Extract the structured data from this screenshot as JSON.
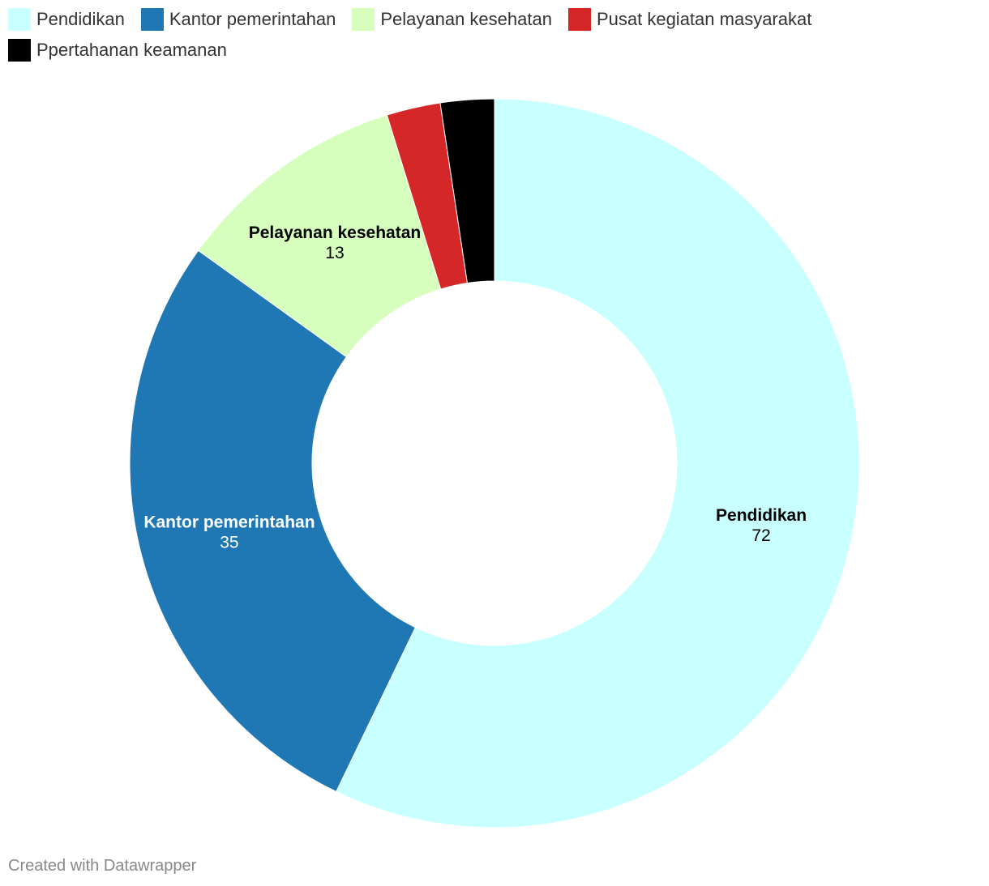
{
  "chart_data": {
    "type": "pie",
    "donut": true,
    "title": "",
    "legend_placement": "top-left",
    "slices": [
      {
        "label": "Pendidikan",
        "value": 72,
        "color": "#c8ffff",
        "label_color": "#000000",
        "show_label": true
      },
      {
        "label": "Kantor pemerintahan",
        "value": 35,
        "color": "#1f77b4",
        "label_color": "#ffffff",
        "show_label": true
      },
      {
        "label": "Pelayanan kesehatan",
        "value": 13,
        "color": "#d6ffbe",
        "label_color": "#000000",
        "show_label": true
      },
      {
        "label": "Pusat kegiatan masyarakat",
        "value": 3,
        "color": "#d62728",
        "label_color": "#ffffff",
        "show_label": false
      },
      {
        "label": "Ppertahanan keamanan",
        "value": 3,
        "color": "#000000",
        "label_color": "#ffffff",
        "show_label": false
      }
    ]
  },
  "footer": {
    "credit": "Created with Datawrapper"
  }
}
